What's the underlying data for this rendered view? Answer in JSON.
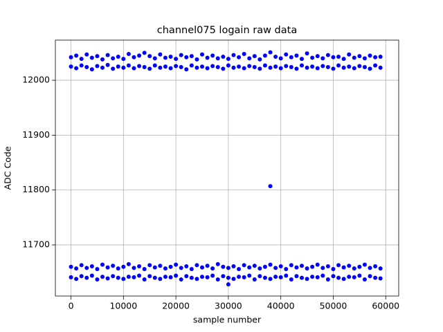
{
  "chart_data": {
    "type": "scatter",
    "title": "channel075 logain raw data",
    "xlabel": "sample number",
    "ylabel": "ADC Code",
    "grid": true,
    "color": "#0000ff",
    "xlim": [
      -2975,
      62475
    ],
    "ylim": [
      11606.8,
      12073.2
    ],
    "xticks": [
      0,
      10000,
      20000,
      30000,
      40000,
      50000,
      60000
    ],
    "yticks": [
      11700,
      11800,
      11900,
      12000
    ],
    "x": [
      0,
      1000,
      2000,
      3000,
      4000,
      5000,
      6000,
      7000,
      8000,
      9000,
      10000,
      11000,
      12000,
      13000,
      14000,
      15000,
      16000,
      17000,
      18000,
      19000,
      20000,
      21000,
      22000,
      23000,
      24000,
      25000,
      26000,
      27000,
      28000,
      29000,
      30000,
      31000,
      32000,
      33000,
      34000,
      35000,
      36000,
      37000,
      38000,
      39000,
      40000,
      41000,
      42000,
      43000,
      44000,
      45000,
      46000,
      47000,
      48000,
      49000,
      50000,
      51000,
      52000,
      53000,
      54000,
      55000,
      56000,
      57000,
      58000,
      59000
    ],
    "series": [
      {
        "color": "#0000ff",
        "values": [
          12042,
          12045,
          12039,
          12047,
          12041,
          12044,
          12038,
          12046,
          12040,
          12043,
          12039,
          12048,
          12042,
          12045,
          12050,
          12044,
          12040,
          12047,
          12041,
          12043,
          12039,
          12046,
          12042,
          12044,
          12038,
          12047,
          12041,
          12045,
          12040,
          12043,
          12039,
          12046,
          12042,
          12048,
          12040,
          12044,
          12038,
          12045,
          12051,
          12043,
          12040,
          12047,
          12042,
          12045,
          12039,
          12049,
          12041,
          12044,
          12040,
          12046,
          12042,
          12043,
          12039,
          12047,
          12041,
          12044,
          12040,
          12045,
          12042,
          12043
        ]
      },
      {
        "color": "#0000ff",
        "values": [
          12025,
          12022,
          12027,
          12024,
          12020,
          12026,
          12023,
          12028,
          12021,
          12025,
          12023,
          12027,
          12022,
          12026,
          12024,
          12021,
          12027,
          12023,
          12025,
          12022,
          12026,
          12024,
          12020,
          12027,
          12023,
          12025,
          12022,
          12026,
          12024,
          12021,
          12027,
          12023,
          12025,
          12022,
          12026,
          12024,
          12021,
          12027,
          12023,
          12025,
          12022,
          12026,
          12024,
          12021,
          12027,
          12023,
          12025,
          12022,
          12026,
          12024,
          12021,
          12027,
          12023,
          12025,
          12022,
          12026,
          12024,
          12021,
          12027,
          12023
        ]
      },
      {
        "color": "#0000ff",
        "values": [
          11660,
          11657,
          11663,
          11658,
          11661,
          11656,
          11664,
          11659,
          11662,
          11657,
          11660,
          11665,
          11658,
          11661,
          11656,
          11663,
          11659,
          11662,
          11657,
          11660,
          11664,
          11658,
          11661,
          11656,
          11663,
          11659,
          11662,
          11657,
          11665,
          11660,
          11658,
          11661,
          11656,
          11663,
          11659,
          11662,
          11657,
          11660,
          11664,
          11658,
          11661,
          11656,
          11663,
          11659,
          11662,
          11657,
          11660,
          11664,
          11658,
          11661,
          11656,
          11663,
          11659,
          11662,
          11657,
          11660,
          11664,
          11658,
          11661,
          11657
        ]
      },
      {
        "color": "#0000ff",
        "values": [
          11641,
          11638,
          11643,
          11640,
          11644,
          11637,
          11642,
          11639,
          11643,
          11640,
          11638,
          11642,
          11641,
          11644,
          11637,
          11643,
          11640,
          11638,
          11642,
          11641,
          11644,
          11637,
          11643,
          11640,
          11638,
          11642,
          11641,
          11644,
          11637,
          11643,
          11640,
          11638,
          11642,
          11641,
          11644,
          11637,
          11643,
          11640,
          11638,
          11642,
          11641,
          11644,
          11637,
          11643,
          11640,
          11638,
          11642,
          11641,
          11644,
          11637,
          11643,
          11640,
          11638,
          11642,
          11641,
          11644,
          11637,
          11643,
          11640,
          11639
        ]
      },
      {
        "color": "#0000ff",
        "x": [
          38000,
          30000
        ],
        "values": [
          11807,
          11628
        ]
      }
    ]
  }
}
